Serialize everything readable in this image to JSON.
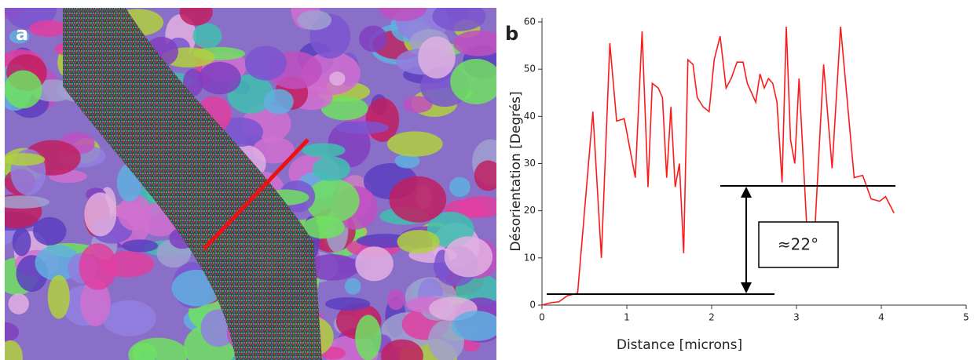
{
  "panel_labels": [
    "a",
    "b"
  ],
  "chart_data": {
    "type": "line",
    "x": [
      0,
      0.1,
      0.2,
      0.3,
      0.42,
      0.6,
      0.7,
      0.8,
      0.88,
      0.97,
      1.1,
      1.18,
      1.25,
      1.3,
      1.37,
      1.42,
      1.47,
      1.52,
      1.57,
      1.62,
      1.67,
      1.72,
      1.78,
      1.83,
      1.9,
      1.97,
      2.03,
      2.1,
      2.17,
      2.23,
      2.3,
      2.37,
      2.42,
      2.47,
      2.52,
      2.57,
      2.62,
      2.67,
      2.72,
      2.77,
      2.83,
      2.88,
      2.93,
      2.98,
      3.03,
      3.12,
      3.22,
      3.32,
      3.42,
      3.52,
      3.68,
      3.78,
      3.88,
      3.98,
      4.05,
      4.15
    ],
    "series": [
      {
        "color": "#ff1a1a",
        "values": [
          0,
          0.5,
          0.7,
          2,
          2.5,
          41,
          10,
          55.5,
          39,
          39.5,
          27,
          58,
          25,
          47,
          46,
          44,
          27,
          42,
          25,
          30,
          11,
          52,
          51,
          44,
          42,
          41,
          52,
          57,
          46,
          48,
          51.5,
          51.5,
          47,
          45,
          43,
          49,
          46,
          48,
          47,
          43,
          26,
          59,
          35,
          30,
          48,
          17,
          17,
          51,
          29,
          59,
          27,
          27.5,
          22.5,
          22,
          23,
          19.5
        ]
      }
    ],
    "xlabel": "Distance [microns]",
    "ylabel": "Désorientation [Degrés]",
    "xlim": [
      0,
      5
    ],
    "xticks": [
      0,
      1,
      2,
      3,
      4,
      5
    ],
    "ylim": [
      0,
      60
    ],
    "yticks": [
      0,
      10,
      20,
      30,
      40,
      50,
      60
    ],
    "annotation": "≈22°"
  }
}
